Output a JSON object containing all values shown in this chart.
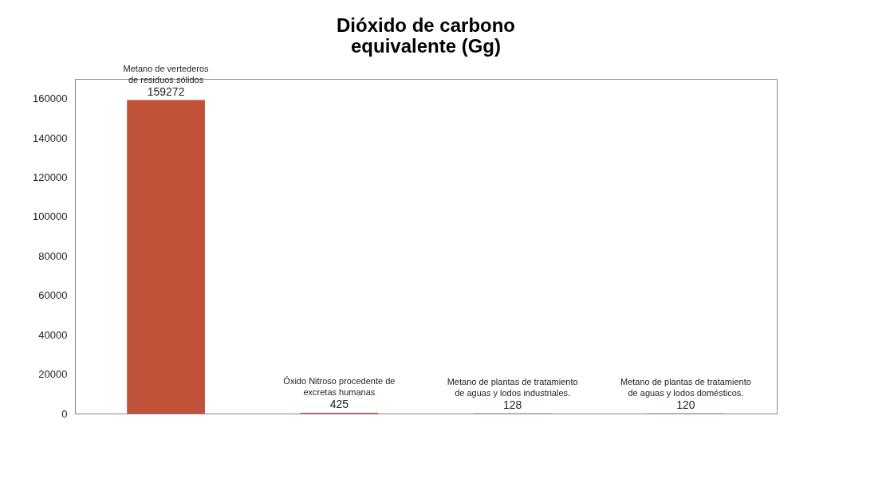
{
  "chart_data": {
    "type": "bar",
    "title": "Dióxido de carbono\nequivalente (Gg)",
    "categories": [
      "Metano de vertederos\nde residuos sólidos",
      "Óxido Nitroso procedente de\nexcretas humanas",
      "Metano de plantas de tratamiento\nde aguas y lodos industriales.",
      "Metano de plantas de tratamiento\nde aguas y lodos domésticos."
    ],
    "values": [
      159272,
      425,
      128,
      120
    ],
    "color": "#c0523a",
    "ylim": [
      0,
      170000
    ],
    "yticks": [
      0,
      20000,
      40000,
      60000,
      80000,
      100000,
      120000,
      140000,
      160000
    ],
    "grid": false,
    "data_labels": true
  }
}
